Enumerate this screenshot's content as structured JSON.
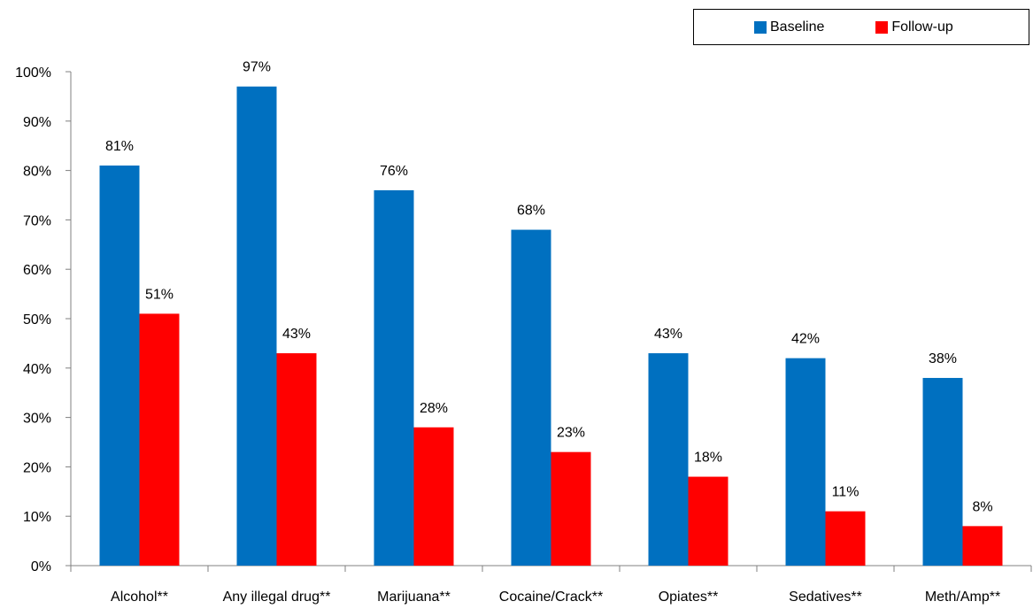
{
  "chart_data": {
    "type": "bar",
    "title": "",
    "xlabel": "",
    "ylabel": "",
    "categories": [
      "Alcohol**",
      "Any illegal drug**",
      "Marijuana**",
      "Cocaine/Crack**",
      "Opiates**",
      "Sedatives**",
      "Meth/Amp**"
    ],
    "series": [
      {
        "name": "Baseline",
        "color": "#0070C0",
        "values": [
          81,
          97,
          76,
          68,
          43,
          42,
          38
        ],
        "labels": [
          "81%",
          "97%",
          "76%",
          "68%",
          "43%",
          "42%",
          "38%"
        ]
      },
      {
        "name": "Follow-up",
        "color": "#FF0000",
        "values": [
          51,
          43,
          28,
          23,
          18,
          11,
          8
        ],
        "labels": [
          "51%",
          "43%",
          "28%",
          "23%",
          "18%",
          "11%",
          "8%"
        ]
      }
    ],
    "ylim": [
      0,
      100
    ],
    "yticks": [
      "0%",
      "10%",
      "20%",
      "30%",
      "40%",
      "50%",
      "60%",
      "70%",
      "80%",
      "90%",
      "100%"
    ],
    "grid": false,
    "legend_position": "top-right"
  }
}
